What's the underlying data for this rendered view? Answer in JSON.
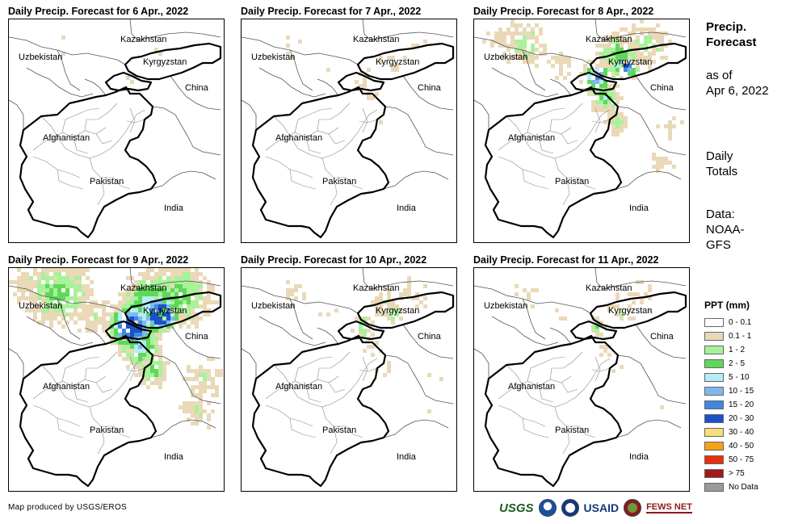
{
  "panels": [
    {
      "title": "Daily Precip. Forecast for 6 Apr., 2022",
      "intensity": 0.05
    },
    {
      "title": "Daily Precip. Forecast for 7 Apr., 2022",
      "intensity": 0.15
    },
    {
      "title": "Daily Precip. Forecast for 8 Apr., 2022",
      "intensity": 0.65
    },
    {
      "title": "Daily Precip. Forecast for 9 Apr., 2022",
      "intensity": 1.0
    },
    {
      "title": "Daily Precip. Forecast for 10 Apr., 2022",
      "intensity": 0.3
    },
    {
      "title": "Daily Precip. Forecast for 11 Apr., 2022",
      "intensity": 0.25
    }
  ],
  "map_labels": {
    "kazakhstan": "Kazakhstan",
    "uzbekistan": "Uzbekistan",
    "kyrgyzstan": "Kyrgyzstan",
    "china": "China",
    "afghanistan": "Afghanistan",
    "pakistan": "Pakistan",
    "india": "India"
  },
  "side": {
    "title": "Precip.\nForecast",
    "asof_line1": "as of",
    "asof_line2": "Apr 6, 2022",
    "totals_line1": "Daily",
    "totals_line2": "Totals",
    "data_line1": "Data:",
    "data_line2": "NOAA-",
    "data_line3": "GFS"
  },
  "legend": {
    "title": "PPT (mm)",
    "items": [
      {
        "label": "0 - 0.1",
        "color": "#ffffff"
      },
      {
        "label": "0.1 - 1",
        "color": "#ead9b8"
      },
      {
        "label": "1 - 2",
        "color": "#a8f29a"
      },
      {
        "label": "2 - 5",
        "color": "#5fd85a"
      },
      {
        "label": "5 - 10",
        "color": "#b4ecf7"
      },
      {
        "label": "10 - 15",
        "color": "#7fb8ee"
      },
      {
        "label": "15 - 20",
        "color": "#3f88e0"
      },
      {
        "label": "20 - 30",
        "color": "#1a52c8"
      },
      {
        "label": "30 - 40",
        "color": "#f6de7a"
      },
      {
        "label": "40 - 50",
        "color": "#f4a21a"
      },
      {
        "label": "50 - 75",
        "color": "#e8300f"
      },
      {
        "label": "> 75",
        "color": "#a1191c"
      },
      {
        "label": "No Data",
        "color": "#9a9a9a"
      }
    ]
  },
  "credit": "Map produced by USGS/EROS",
  "logos": {
    "usgs": "USGS",
    "usaid": "USAID",
    "fews": "FEWS NET"
  }
}
